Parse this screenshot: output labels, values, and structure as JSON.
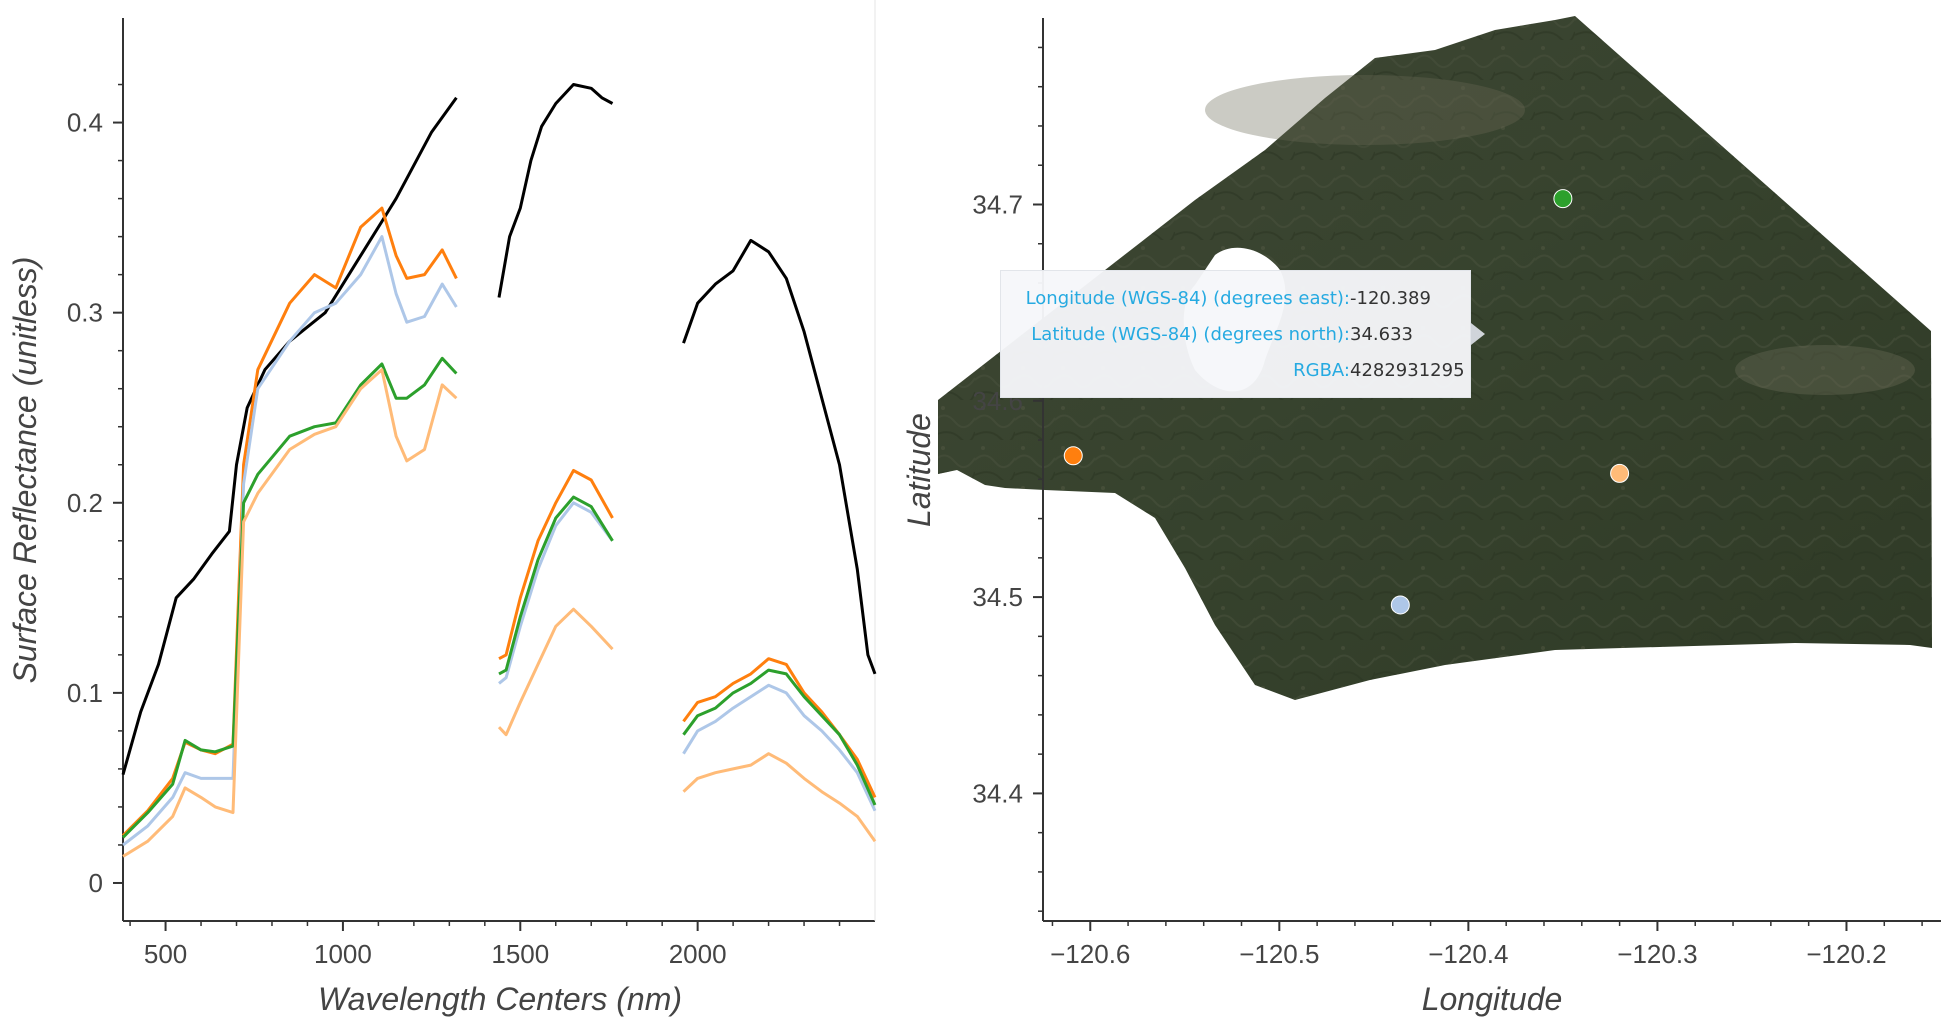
{
  "chart_data": [
    {
      "type": "line",
      "xlabel": "Wavelength Centers (nm)",
      "ylabel": "Surface Reflectance (unitless)",
      "xlim": [
        380,
        2500
      ],
      "ylim": [
        -0.02,
        0.455
      ],
      "xticks": [
        500,
        1000,
        1500,
        2000
      ],
      "yticks": [
        0,
        0.1,
        0.2,
        0.3,
        0.4
      ],
      "grid": false,
      "series": [
        {
          "color": "#000000",
          "segments": [
            [
              [
                380,
                0.057
              ],
              [
                430,
                0.09
              ],
              [
                480,
                0.115
              ],
              [
                530,
                0.15
              ],
              [
                580,
                0.16
              ],
              [
                630,
                0.173
              ],
              [
                680,
                0.185
              ],
              [
                700,
                0.22
              ],
              [
                730,
                0.25
              ],
              [
                780,
                0.27
              ],
              [
                850,
                0.285
              ],
              [
                950,
                0.3
              ],
              [
                1050,
                0.33
              ],
              [
                1150,
                0.36
              ],
              [
                1250,
                0.395
              ],
              [
                1320,
                0.413
              ]
            ],
            [
              [
                1440,
                0.308
              ],
              [
                1470,
                0.34
              ],
              [
                1500,
                0.355
              ],
              [
                1530,
                0.38
              ],
              [
                1560,
                0.398
              ],
              [
                1600,
                0.41
              ],
              [
                1650,
                0.42
              ],
              [
                1700,
                0.418
              ],
              [
                1730,
                0.413
              ],
              [
                1760,
                0.41
              ]
            ],
            [
              [
                1960,
                0.284
              ],
              [
                2000,
                0.305
              ],
              [
                2050,
                0.315
              ],
              [
                2100,
                0.322
              ],
              [
                2150,
                0.338
              ],
              [
                2200,
                0.332
              ],
              [
                2250,
                0.318
              ],
              [
                2300,
                0.29
              ],
              [
                2350,
                0.255
              ],
              [
                2400,
                0.22
              ],
              [
                2450,
                0.165
              ],
              [
                2480,
                0.12
              ],
              [
                2500,
                0.11
              ]
            ]
          ]
        },
        {
          "color": "#ff7f0e",
          "segments": [
            [
              [
                380,
                0.025
              ],
              [
                450,
                0.038
              ],
              [
                520,
                0.055
              ],
              [
                555,
                0.074
              ],
              [
                600,
                0.07
              ],
              [
                640,
                0.068
              ],
              [
                690,
                0.073
              ],
              [
                720,
                0.22
              ],
              [
                760,
                0.27
              ],
              [
                850,
                0.305
              ],
              [
                920,
                0.32
              ],
              [
                980,
                0.313
              ],
              [
                1050,
                0.345
              ],
              [
                1110,
                0.355
              ],
              [
                1150,
                0.33
              ],
              [
                1180,
                0.318
              ],
              [
                1230,
                0.32
              ],
              [
                1280,
                0.333
              ],
              [
                1320,
                0.318
              ]
            ],
            [
              [
                1440,
                0.118
              ],
              [
                1460,
                0.12
              ],
              [
                1500,
                0.15
              ],
              [
                1550,
                0.18
              ],
              [
                1600,
                0.2
              ],
              [
                1650,
                0.217
              ],
              [
                1700,
                0.212
              ],
              [
                1760,
                0.192
              ]
            ],
            [
              [
                1960,
                0.085
              ],
              [
                2000,
                0.095
              ],
              [
                2050,
                0.098
              ],
              [
                2100,
                0.105
              ],
              [
                2150,
                0.11
              ],
              [
                2200,
                0.118
              ],
              [
                2250,
                0.115
              ],
              [
                2300,
                0.1
              ],
              [
                2350,
                0.09
              ],
              [
                2400,
                0.078
              ],
              [
                2450,
                0.065
              ],
              [
                2500,
                0.045
              ]
            ]
          ]
        },
        {
          "color": "#aec7e8",
          "segments": [
            [
              [
                380,
                0.02
              ],
              [
                450,
                0.03
              ],
              [
                520,
                0.045
              ],
              [
                555,
                0.058
              ],
              [
                600,
                0.055
              ],
              [
                640,
                0.055
              ],
              [
                690,
                0.055
              ],
              [
                720,
                0.21
              ],
              [
                760,
                0.26
              ],
              [
                850,
                0.285
              ],
              [
                920,
                0.3
              ],
              [
                980,
                0.305
              ],
              [
                1050,
                0.32
              ],
              [
                1110,
                0.34
              ],
              [
                1150,
                0.31
              ],
              [
                1180,
                0.295
              ],
              [
                1230,
                0.298
              ],
              [
                1280,
                0.315
              ],
              [
                1320,
                0.303
              ]
            ],
            [
              [
                1440,
                0.105
              ],
              [
                1460,
                0.108
              ],
              [
                1500,
                0.135
              ],
              [
                1550,
                0.165
              ],
              [
                1600,
                0.188
              ],
              [
                1650,
                0.2
              ],
              [
                1700,
                0.195
              ],
              [
                1760,
                0.18
              ]
            ],
            [
              [
                1960,
                0.068
              ],
              [
                2000,
                0.08
              ],
              [
                2050,
                0.085
              ],
              [
                2100,
                0.092
              ],
              [
                2150,
                0.098
              ],
              [
                2200,
                0.104
              ],
              [
                2250,
                0.1
              ],
              [
                2300,
                0.088
              ],
              [
                2350,
                0.08
              ],
              [
                2400,
                0.07
              ],
              [
                2450,
                0.058
              ],
              [
                2500,
                0.038
              ]
            ]
          ]
        },
        {
          "color": "#2ca02c",
          "segments": [
            [
              [
                380,
                0.024
              ],
              [
                450,
                0.037
              ],
              [
                520,
                0.052
              ],
              [
                555,
                0.075
              ],
              [
                600,
                0.07
              ],
              [
                640,
                0.069
              ],
              [
                690,
                0.072
              ],
              [
                720,
                0.2
              ],
              [
                760,
                0.215
              ],
              [
                850,
                0.235
              ],
              [
                920,
                0.24
              ],
              [
                980,
                0.242
              ],
              [
                1050,
                0.262
              ],
              [
                1110,
                0.273
              ],
              [
                1150,
                0.255
              ],
              [
                1180,
                0.255
              ],
              [
                1230,
                0.262
              ],
              [
                1280,
                0.276
              ],
              [
                1320,
                0.268
              ]
            ],
            [
              [
                1440,
                0.11
              ],
              [
                1460,
                0.112
              ],
              [
                1500,
                0.14
              ],
              [
                1550,
                0.17
              ],
              [
                1600,
                0.192
              ],
              [
                1650,
                0.203
              ],
              [
                1700,
                0.198
              ],
              [
                1760,
                0.18
              ]
            ],
            [
              [
                1960,
                0.078
              ],
              [
                2000,
                0.088
              ],
              [
                2050,
                0.092
              ],
              [
                2100,
                0.1
              ],
              [
                2150,
                0.105
              ],
              [
                2200,
                0.112
              ],
              [
                2250,
                0.11
              ],
              [
                2300,
                0.098
              ],
              [
                2350,
                0.088
              ],
              [
                2400,
                0.078
              ],
              [
                2450,
                0.062
              ],
              [
                2500,
                0.041
              ]
            ]
          ]
        },
        {
          "color": "#ffbb78",
          "segments": [
            [
              [
                380,
                0.014
              ],
              [
                450,
                0.022
              ],
              [
                520,
                0.035
              ],
              [
                555,
                0.05
              ],
              [
                600,
                0.045
              ],
              [
                640,
                0.04
              ],
              [
                690,
                0.037
              ],
              [
                720,
                0.19
              ],
              [
                760,
                0.205
              ],
              [
                850,
                0.228
              ],
              [
                920,
                0.236
              ],
              [
                980,
                0.24
              ],
              [
                1050,
                0.26
              ],
              [
                1110,
                0.27
              ],
              [
                1150,
                0.235
              ],
              [
                1180,
                0.222
              ],
              [
                1230,
                0.228
              ],
              [
                1280,
                0.262
              ],
              [
                1320,
                0.255
              ]
            ],
            [
              [
                1440,
                0.082
              ],
              [
                1460,
                0.078
              ],
              [
                1500,
                0.095
              ],
              [
                1550,
                0.115
              ],
              [
                1600,
                0.135
              ],
              [
                1650,
                0.144
              ],
              [
                1700,
                0.135
              ],
              [
                1760,
                0.123
              ]
            ],
            [
              [
                1960,
                0.048
              ],
              [
                2000,
                0.055
              ],
              [
                2050,
                0.058
              ],
              [
                2100,
                0.06
              ],
              [
                2150,
                0.062
              ],
              [
                2200,
                0.068
              ],
              [
                2250,
                0.063
              ],
              [
                2300,
                0.055
              ],
              [
                2350,
                0.048
              ],
              [
                2400,
                0.042
              ],
              [
                2450,
                0.035
              ],
              [
                2500,
                0.022
              ]
            ]
          ]
        }
      ]
    },
    {
      "type": "scatter",
      "xlabel": "Longitude",
      "ylabel": "Latitude",
      "xlim": [
        -120.625,
        -120.15
      ],
      "ylim": [
        34.335,
        34.795
      ],
      "xticks": [
        -120.6,
        -120.5,
        -120.4,
        -120.3,
        -120.2
      ],
      "yticks": [
        34.4,
        34.5,
        34.6,
        34.7
      ],
      "grid": false,
      "background": "satellite RGB image of terrain",
      "points": [
        {
          "lon": -120.35,
          "lat": 34.703,
          "color": "#2ca02c"
        },
        {
          "lon": -120.609,
          "lat": 34.572,
          "color": "#ff7f0e"
        },
        {
          "lon": -120.32,
          "lat": 34.563,
          "color": "#ffbb78"
        },
        {
          "lon": -120.436,
          "lat": 34.496,
          "color": "#aec7e8"
        }
      ]
    }
  ],
  "tooltip": {
    "rows": [
      {
        "key": "Longitude (WGS-84) (degrees east):",
        "value": "-120.389"
      },
      {
        "key": "Latitude (WGS-84) (degrees north):",
        "value": "34.633"
      },
      {
        "key": "RGBA:",
        "value": "4282931295"
      }
    ]
  }
}
